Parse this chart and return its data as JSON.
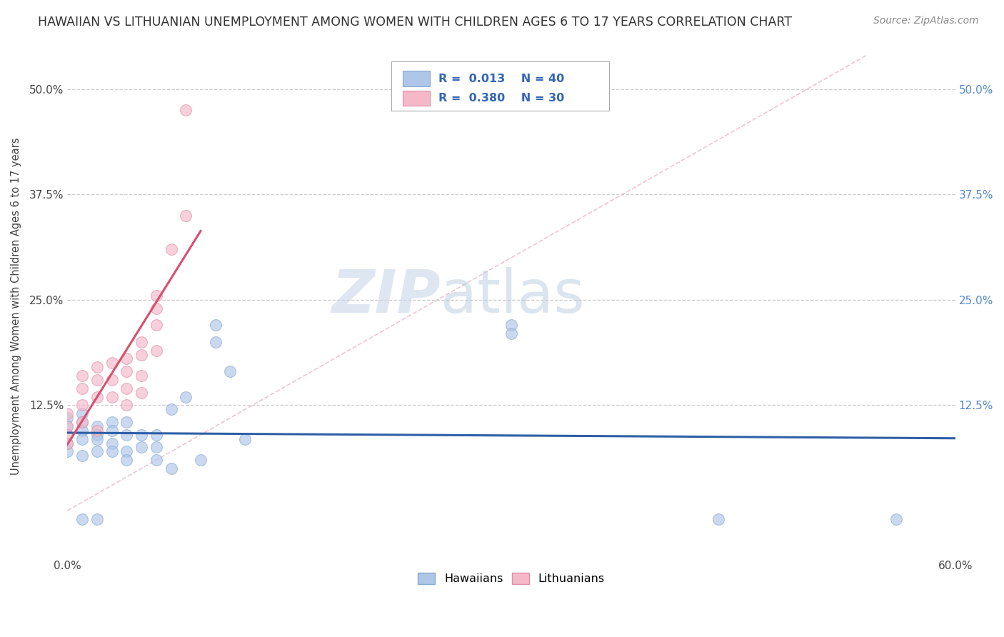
{
  "title": "HAWAIIAN VS LITHUANIAN UNEMPLOYMENT AMONG WOMEN WITH CHILDREN AGES 6 TO 17 YEARS CORRELATION CHART",
  "source": "Source: ZipAtlas.com",
  "ylabel": "Unemployment Among Women with Children Ages 6 to 17 years",
  "xlim": [
    0.0,
    0.6
  ],
  "ylim": [
    -0.055,
    0.54
  ],
  "watermark_zip": "ZIP",
  "watermark_atlas": "atlas",
  "x_tick_positions": [
    0.0,
    0.6
  ],
  "x_tick_labels": [
    "0.0%",
    "60.0%"
  ],
  "y_tick_positions": [
    0.125,
    0.25,
    0.375,
    0.5
  ],
  "y_tick_labels": [
    "12.5%",
    "25.0%",
    "37.5%",
    "50.0%"
  ],
  "hawaiians_x": [
    0.0,
    0.0,
    0.0,
    0.0,
    0.01,
    0.01,
    0.01,
    0.01,
    0.01,
    0.01,
    0.02,
    0.02,
    0.02,
    0.02,
    0.02,
    0.03,
    0.03,
    0.03,
    0.03,
    0.04,
    0.04,
    0.04,
    0.04,
    0.05,
    0.05,
    0.06,
    0.06,
    0.06,
    0.07,
    0.07,
    0.08,
    0.09,
    0.1,
    0.1,
    0.11,
    0.12,
    0.3,
    0.3,
    0.44,
    0.56
  ],
  "hawaiians_y": [
    0.11,
    0.1,
    0.08,
    0.07,
    0.115,
    0.105,
    0.095,
    0.085,
    0.065,
    -0.01,
    0.1,
    0.09,
    0.085,
    0.07,
    -0.01,
    0.105,
    0.095,
    0.08,
    0.07,
    0.105,
    0.09,
    0.07,
    0.06,
    0.09,
    0.075,
    0.09,
    0.075,
    0.06,
    0.12,
    0.05,
    0.135,
    0.06,
    0.2,
    0.22,
    0.165,
    0.085,
    0.22,
    0.21,
    -0.01,
    -0.01
  ],
  "lithuanians_x": [
    0.0,
    0.0,
    0.0,
    0.0,
    0.01,
    0.01,
    0.01,
    0.01,
    0.02,
    0.02,
    0.02,
    0.02,
    0.03,
    0.03,
    0.03,
    0.04,
    0.04,
    0.04,
    0.04,
    0.05,
    0.05,
    0.05,
    0.05,
    0.06,
    0.06,
    0.06,
    0.06,
    0.07,
    0.08,
    0.08
  ],
  "lithuanians_y": [
    0.115,
    0.1,
    0.09,
    0.08,
    0.16,
    0.145,
    0.125,
    0.105,
    0.17,
    0.155,
    0.135,
    0.095,
    0.175,
    0.155,
    0.135,
    0.18,
    0.165,
    0.145,
    0.125,
    0.2,
    0.185,
    0.16,
    0.14,
    0.255,
    0.24,
    0.22,
    0.19,
    0.31,
    0.35,
    0.475
  ],
  "hawaiians_color": "#aec6e8",
  "lithuanians_color": "#f4b8c8",
  "hawaiians_line_color": "#2d5fa6",
  "lithuanians_line_color": "#d94f6e",
  "reference_line_color": "#e8b8c8",
  "background_color": "#ffffff",
  "grid_color": "#c8c8c8",
  "marker_size": 130,
  "marker_alpha": 0.65,
  "title_fontsize": 12.5,
  "source_fontsize": 10,
  "watermark_fontsize_zip": 60,
  "watermark_fontsize_atlas": 60,
  "watermark_color_zip": "#c8d8e8",
  "watermark_color_atlas": "#b8cce0",
  "right_tick_color": "#5588cc"
}
